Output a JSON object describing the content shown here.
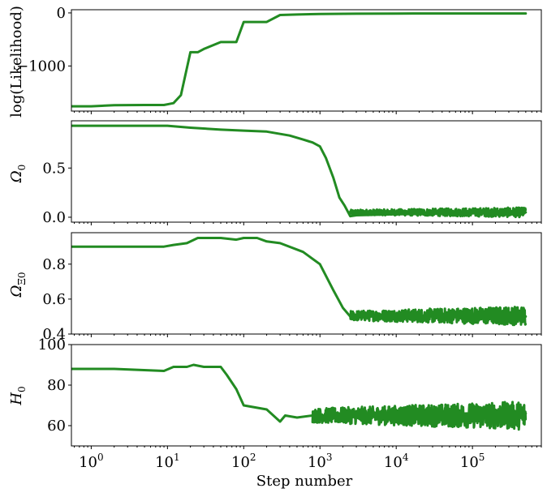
{
  "chart_data": [
    {
      "type": "line",
      "xscale": "log",
      "xlim": [
        0.55,
        800000
      ],
      "ylabel": "log(Likelihood)",
      "ylim": [
        -1850,
        60
      ],
      "yticks": [
        0,
        -1000
      ],
      "ytick_labels": [
        "0",
        "−1000"
      ],
      "xtick_labels_shown": false,
      "color": "#228b22",
      "x": [
        0.55,
        1,
        2,
        5,
        9,
        12,
        15,
        20,
        25,
        30,
        50,
        80,
        100,
        200,
        300,
        500,
        1000,
        3000,
        10000,
        30000,
        100000,
        300000,
        500000
      ],
      "y": [
        -1760,
        -1760,
        -1740,
        -1735,
        -1735,
        -1700,
        -1550,
        -740,
        -740,
        -680,
        -550,
        -550,
        -170,
        -170,
        -40,
        -30,
        -20,
        -15,
        -12,
        -10,
        -10,
        -10,
        -10
      ]
    },
    {
      "type": "line",
      "xscale": "log",
      "xlim": [
        0.55,
        800000
      ],
      "ylabel": "Ω0",
      "ylim": [
        -0.05,
        0.98
      ],
      "yticks": [
        0.5,
        0.0
      ],
      "ytick_labels": [
        "0.5",
        "0.0"
      ],
      "xtick_labels_shown": false,
      "color": "#228b22",
      "noise_after_x": 2500,
      "noise_range": [
        0.0,
        0.1
      ],
      "x": [
        0.55,
        10,
        20,
        50,
        100,
        200,
        400,
        600,
        800,
        1000,
        1200,
        1500,
        1800,
        2100,
        2500,
        3000,
        10000,
        100000,
        500000
      ],
      "y": [
        0.93,
        0.93,
        0.91,
        0.89,
        0.88,
        0.87,
        0.83,
        0.79,
        0.76,
        0.72,
        0.6,
        0.4,
        0.2,
        0.12,
        0.01,
        0.02,
        0.03,
        0.04,
        0.05
      ]
    },
    {
      "type": "line",
      "xscale": "log",
      "xlim": [
        0.55,
        800000
      ],
      "ylabel": "ΩΞ0",
      "ylim": [
        0.4,
        0.98
      ],
      "yticks": [
        0.8,
        0.6,
        0.4
      ],
      "ytick_labels": [
        "0.8",
        "0.6",
        "0.4"
      ],
      "xtick_labels_shown": false,
      "color": "#228b22",
      "noise_after_x": 2500,
      "noise_range": [
        0.45,
        0.56
      ],
      "x": [
        0.55,
        2,
        9,
        12,
        18,
        25,
        35,
        50,
        80,
        100,
        150,
        200,
        300,
        600,
        1000,
        1500,
        2000,
        2500,
        3000,
        10000,
        100000,
        500000
      ],
      "y": [
        0.9,
        0.9,
        0.9,
        0.91,
        0.92,
        0.95,
        0.95,
        0.95,
        0.94,
        0.95,
        0.95,
        0.93,
        0.92,
        0.87,
        0.8,
        0.65,
        0.55,
        0.5,
        0.5,
        0.5,
        0.5,
        0.5
      ]
    },
    {
      "type": "line",
      "xscale": "log",
      "xlim": [
        0.55,
        800000
      ],
      "xlabel": "Step number",
      "xticks": [
        1,
        10,
        100,
        1000,
        10000,
        100000
      ],
      "xtick_base": "10",
      "xtick_exponents": [
        "0",
        "1",
        "2",
        "3",
        "4",
        "5"
      ],
      "ylabel": "H0",
      "ylim": [
        50,
        100
      ],
      "yticks": [
        100,
        80,
        60
      ],
      "ytick_labels": [
        "100",
        "80",
        "60"
      ],
      "color": "#228b22",
      "noise_after_x": 800,
      "noise_range": [
        58,
        72
      ],
      "x": [
        0.55,
        2,
        9,
        12,
        18,
        22,
        30,
        50,
        60,
        80,
        100,
        200,
        300,
        350,
        500,
        800,
        1000,
        3000,
        10000,
        100000,
        500000
      ],
      "y": [
        88,
        88,
        87,
        89,
        89,
        90,
        89,
        89,
        85,
        78,
        70,
        68,
        62,
        65,
        64,
        65,
        65,
        66,
        66,
        66,
        66
      ]
    }
  ]
}
